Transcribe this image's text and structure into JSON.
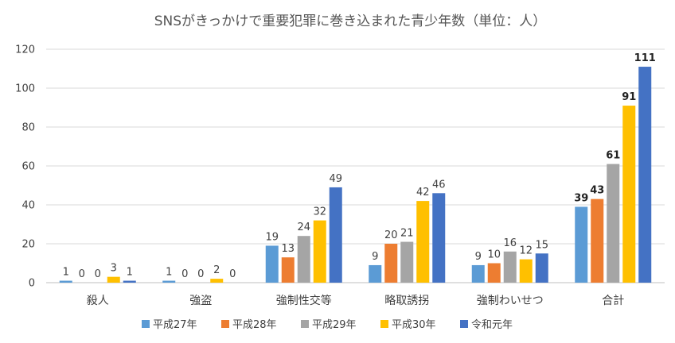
{
  "chart_data": {
    "type": "bar",
    "title": "SNSがきっかけで重要犯罪に巻き込まれた青少年数（単位：人）",
    "categories": [
      "殺人",
      "強盗",
      "強制性交等",
      "略取誘拐",
      "強制わいせつ",
      "合計"
    ],
    "series": [
      {
        "name": "平成27年",
        "color": "#5b9bd5",
        "values": [
          1,
          1,
          19,
          9,
          9,
          39
        ]
      },
      {
        "name": "平成28年",
        "color": "#ed7d31",
        "values": [
          0,
          0,
          13,
          20,
          10,
          43
        ]
      },
      {
        "name": "平成29年",
        "color": "#a5a5a5",
        "values": [
          0,
          0,
          24,
          21,
          16,
          61
        ]
      },
      {
        "name": "平成30年",
        "color": "#ffc000",
        "values": [
          3,
          2,
          32,
          42,
          12,
          91
        ]
      },
      {
        "name": "令和元年",
        "color": "#4472c4",
        "values": [
          1,
          0,
          49,
          46,
          15,
          111
        ]
      }
    ],
    "ylim": [
      0,
      120
    ],
    "yticks": [
      0,
      20,
      40,
      60,
      80,
      100,
      120
    ],
    "xlabel": "",
    "ylabel": "",
    "grid": true,
    "legend": "bottom",
    "bold_label_category": "合計"
  }
}
